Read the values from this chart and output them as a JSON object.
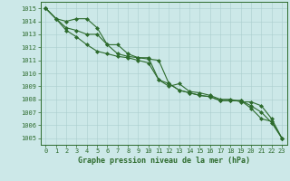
{
  "title": "Graphe pression niveau de la mer (hPa)",
  "xlabel_hours": [
    0,
    1,
    2,
    3,
    4,
    5,
    6,
    7,
    8,
    9,
    10,
    11,
    12,
    13,
    14,
    15,
    16,
    17,
    18,
    19,
    20,
    21,
    22,
    23
  ],
  "line_top": [
    1015.0,
    1014.2,
    1014.0,
    1014.2,
    1014.2,
    1013.5,
    1012.2,
    1012.2,
    1011.5,
    1011.2,
    1011.2,
    1009.5,
    1009.0,
    1009.2,
    1008.6,
    1008.5,
    1008.3,
    1008.0,
    1008.0,
    1007.8,
    1007.8,
    1007.5,
    1006.5,
    1005.0
  ],
  "line_mid": [
    1015.0,
    1014.2,
    1013.5,
    1013.3,
    1013.0,
    1013.0,
    1012.2,
    1011.5,
    1011.3,
    1011.2,
    1011.1,
    1011.0,
    1009.2,
    1008.7,
    1008.5,
    1008.3,
    1008.2,
    1007.9,
    1007.9,
    1007.9,
    1007.5,
    1007.0,
    1006.2,
    1005.0
  ],
  "line_bot": [
    1015.0,
    1014.2,
    1013.3,
    1012.8,
    1012.2,
    1011.7,
    1011.5,
    1011.3,
    1011.2,
    1011.0,
    1010.8,
    1009.5,
    1009.2,
    1008.7,
    1008.5,
    1008.3,
    1008.2,
    1007.9,
    1007.9,
    1007.9,
    1007.3,
    1006.5,
    1006.3,
    1005.0
  ],
  "ylim_min": 1004.5,
  "ylim_max": 1015.5,
  "yticks": [
    1005,
    1006,
    1007,
    1008,
    1009,
    1010,
    1011,
    1012,
    1013,
    1014,
    1015
  ],
  "line_color": "#2d6b2d",
  "bg_color": "#cce8e8",
  "grid_color": "#aacece",
  "spine_color": "#2d6b2d",
  "label_color": "#2d6b2d",
  "title_color": "#2d6b2d",
  "title_fontsize": 6.0,
  "tick_fontsize": 5.0
}
